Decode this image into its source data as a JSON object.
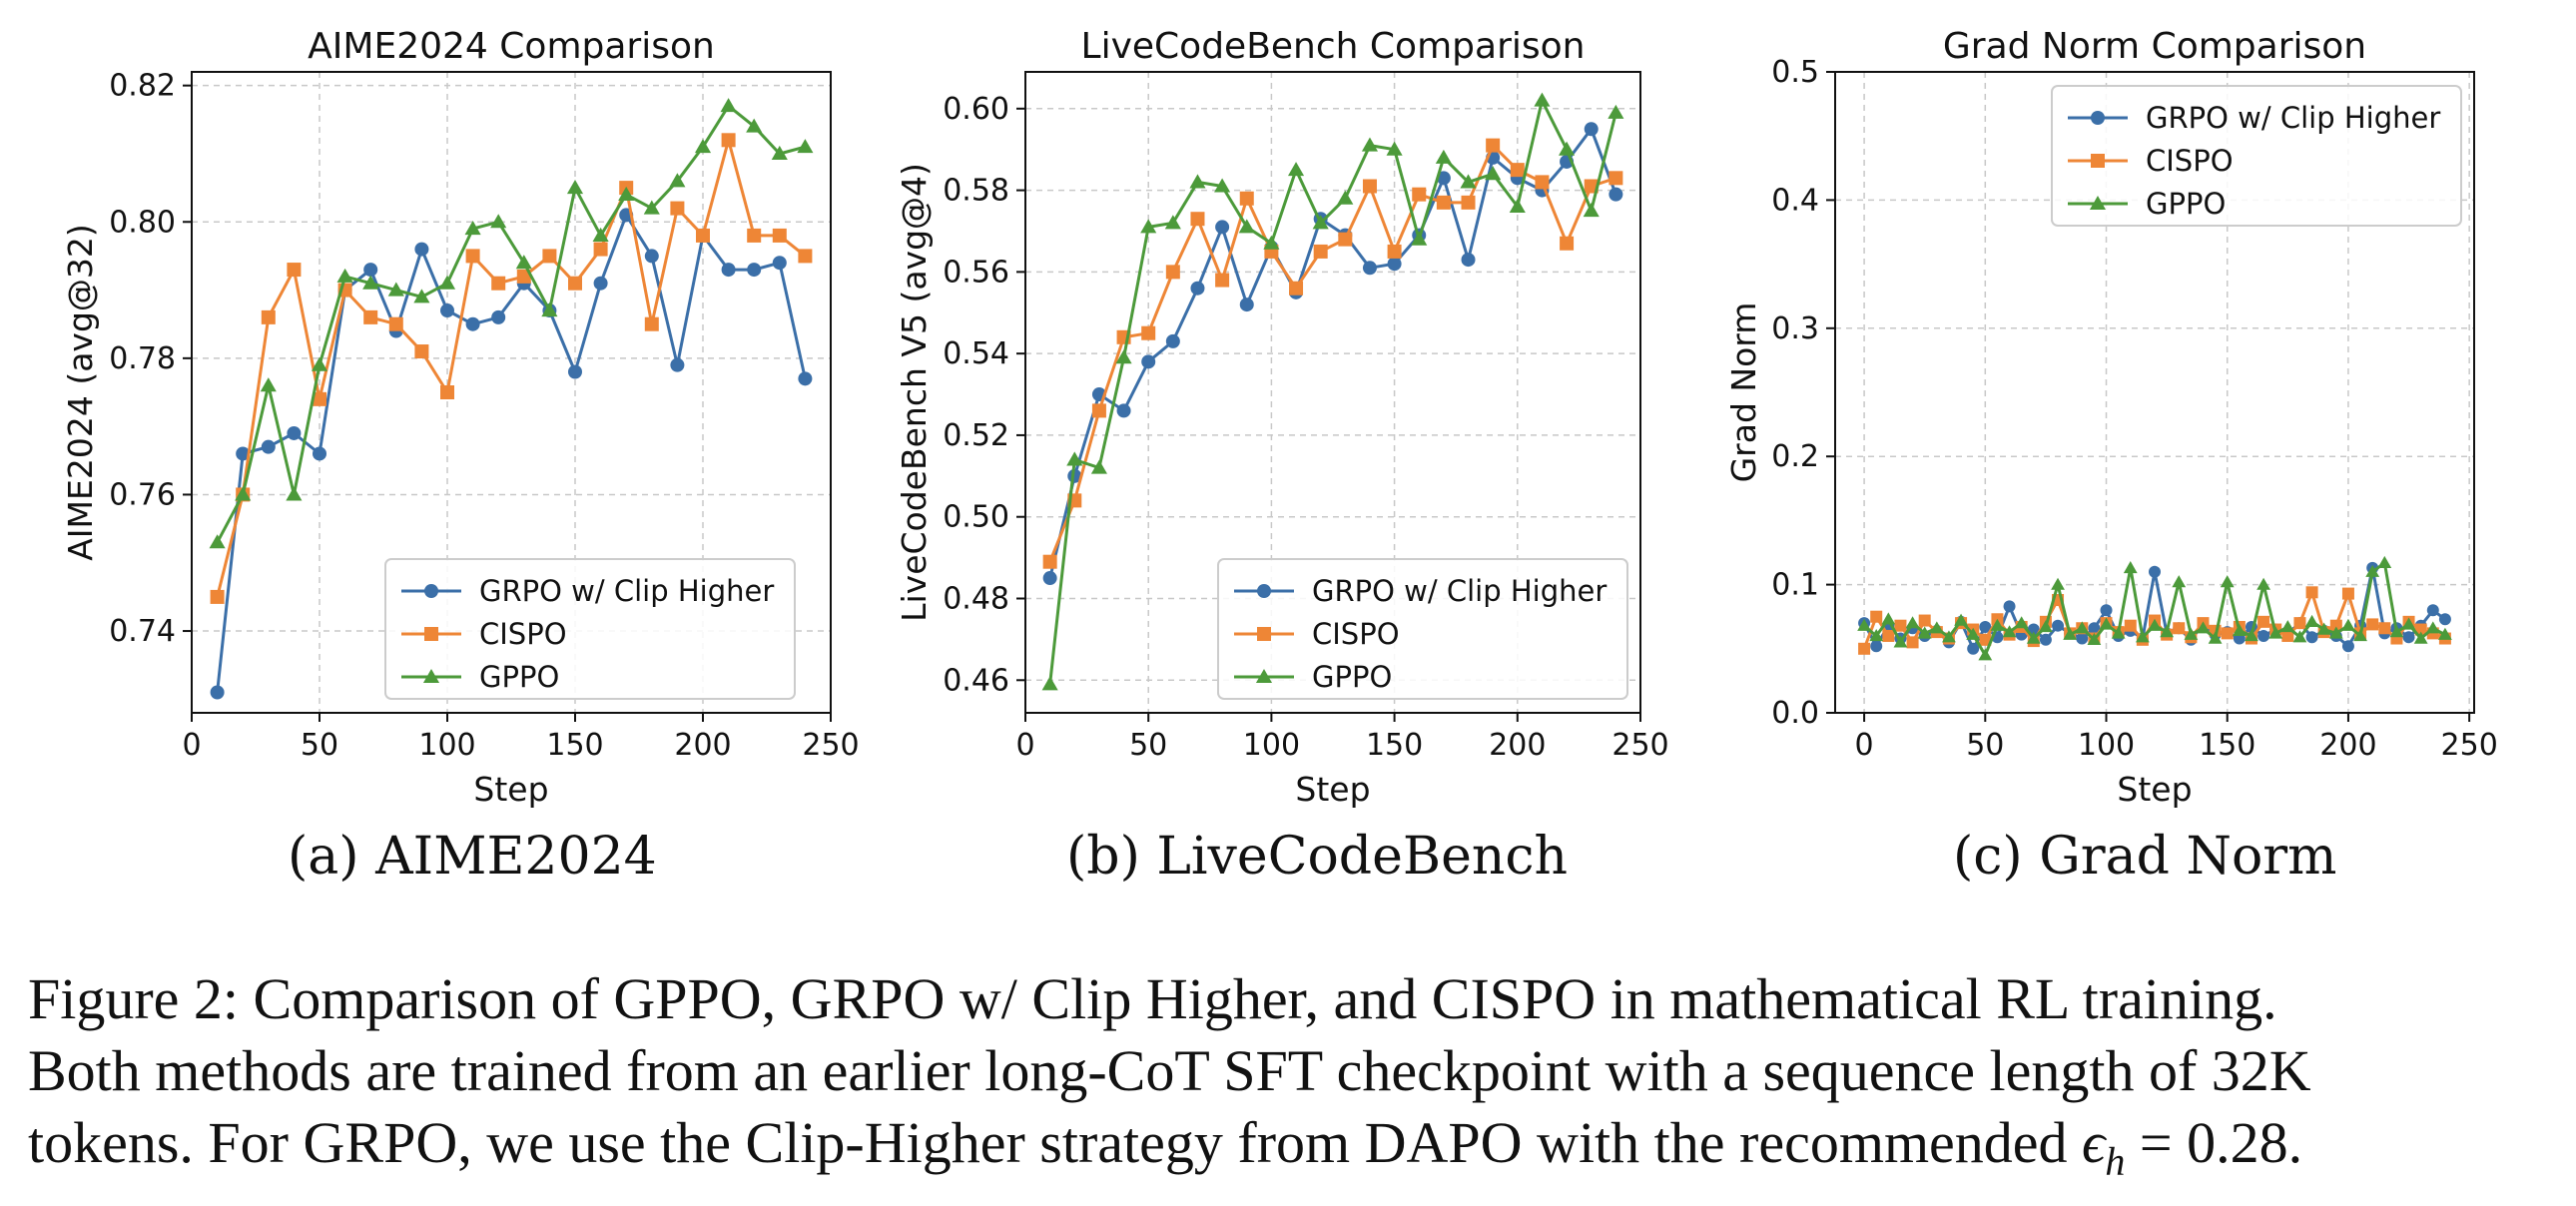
{
  "colors": {
    "grpo": "#3b6fa8",
    "cispo": "#ee8636",
    "gppo": "#4c9a3a"
  },
  "subcaptions": {
    "a": "(a) AIME2024",
    "b": "(b) LiveCodeBench",
    "c": "(c) Grad Norm"
  },
  "caption": {
    "line1": "Figure 2: Comparison of GPPO, GRPO w/ Clip Higher, and CISPO in mathematical RL training.",
    "line2": "Both methods are trained from an earlier long-CoT SFT checkpoint with a sequence length of 32K",
    "line3_prefix": "tokens. For GRPO, we use the Clip-Higher strategy from DAPO with the recommended ",
    "math_symbol": "ϵ",
    "math_sub": "h",
    "math_value": " = 0.28."
  },
  "chart_data": [
    {
      "type": "line",
      "title": "AIME2024 Comparison",
      "xlabel": "Step",
      "ylabel": "AIME2024 (avg@32)",
      "xlim": [
        0,
        250
      ],
      "ylim": [
        0.728,
        0.822
      ],
      "xticks": [
        "0",
        "50",
        "100",
        "150",
        "200",
        "250"
      ],
      "yticks": [
        "0.74",
        "0.76",
        "0.78",
        "0.80",
        "0.82"
      ],
      "grid": true,
      "legend": "lower-right",
      "x": [
        10,
        20,
        30,
        40,
        50,
        60,
        70,
        80,
        90,
        100,
        110,
        120,
        130,
        140,
        150,
        160,
        170,
        180,
        190,
        200,
        210,
        220,
        230,
        240
      ],
      "series": [
        {
          "name": "GRPO w/ Clip Higher",
          "values": [
            0.731,
            0.766,
            0.767,
            0.769,
            0.766,
            0.79,
            0.793,
            0.784,
            0.796,
            0.787,
            0.785,
            0.786,
            0.791,
            0.787,
            0.778,
            0.791,
            0.801,
            0.795,
            0.779,
            0.798,
            0.793,
            0.793,
            0.794,
            0.777
          ]
        },
        {
          "name": "CISPO",
          "values": [
            0.745,
            0.76,
            0.786,
            0.793,
            0.774,
            0.79,
            0.786,
            0.785,
            0.781,
            0.775,
            0.795,
            0.791,
            0.792,
            0.795,
            0.791,
            0.796,
            0.805,
            0.785,
            0.802,
            0.798,
            0.812,
            0.798,
            0.798,
            0.795
          ]
        },
        {
          "name": "GPPO",
          "values": [
            0.753,
            0.76,
            0.776,
            0.76,
            0.779,
            0.792,
            0.791,
            0.79,
            0.789,
            0.791,
            0.799,
            0.8,
            0.794,
            0.787,
            0.805,
            0.798,
            0.804,
            0.802,
            0.806,
            0.811,
            0.817,
            0.814,
            0.81,
            0.811
          ]
        }
      ]
    },
    {
      "type": "line",
      "title": "LiveCodeBench Comparison",
      "xlabel": "Step",
      "ylabel": "LiveCodeBench V5 (avg@4)",
      "xlim": [
        0,
        250
      ],
      "ylim": [
        0.452,
        0.609
      ],
      "xticks": [
        "0",
        "50",
        "100",
        "150",
        "200",
        "250"
      ],
      "yticks": [
        "0.46",
        "0.48",
        "0.50",
        "0.52",
        "0.54",
        "0.56",
        "0.58",
        "0.60"
      ],
      "grid": true,
      "legend": "lower-right",
      "x": [
        10,
        20,
        30,
        40,
        50,
        60,
        70,
        80,
        90,
        100,
        110,
        120,
        130,
        140,
        150,
        160,
        170,
        180,
        190,
        200,
        210,
        220,
        230,
        240
      ],
      "series": [
        {
          "name": "GRPO w/ Clip Higher",
          "values": [
            0.485,
            0.51,
            0.53,
            0.526,
            0.538,
            0.543,
            0.556,
            0.571,
            0.552,
            0.566,
            0.555,
            0.573,
            0.569,
            0.561,
            0.562,
            0.569,
            0.583,
            0.563,
            0.588,
            0.583,
            0.58,
            0.587,
            0.595,
            0.579
          ]
        },
        {
          "name": "CISPO",
          "values": [
            0.489,
            0.504,
            0.526,
            0.544,
            0.545,
            0.56,
            0.573,
            0.558,
            0.578,
            0.565,
            0.556,
            0.565,
            0.568,
            0.581,
            0.565,
            0.579,
            0.577,
            0.577,
            0.591,
            0.585,
            0.582,
            0.567,
            0.581,
            0.583
          ]
        },
        {
          "name": "GPPO",
          "values": [
            0.459,
            0.514,
            0.512,
            0.539,
            0.571,
            0.572,
            0.582,
            0.581,
            0.571,
            0.567,
            0.585,
            0.572,
            0.578,
            0.591,
            0.59,
            0.568,
            0.588,
            0.582,
            0.584,
            0.576,
            0.602,
            0.59,
            0.575,
            0.599
          ]
        }
      ]
    },
    {
      "type": "line",
      "title": "Grad Norm Comparison",
      "xlabel": "Step",
      "ylabel": "Grad Norm",
      "xlim": [
        -12,
        252
      ],
      "ylim": [
        0,
        0.5
      ],
      "xticks": [
        "0",
        "50",
        "100",
        "150",
        "200",
        "250"
      ],
      "yticks": [
        "0.0",
        "0.1",
        "0.2",
        "0.3",
        "0.4",
        "0.5"
      ],
      "grid": true,
      "legend": "upper-right",
      "x": [
        0,
        5,
        10,
        15,
        20,
        25,
        30,
        35,
        40,
        45,
        50,
        55,
        60,
        65,
        70,
        75,
        80,
        85,
        90,
        95,
        100,
        105,
        110,
        115,
        120,
        125,
        130,
        135,
        140,
        145,
        150,
        155,
        160,
        165,
        170,
        175,
        180,
        185,
        190,
        195,
        200,
        205,
        210,
        215,
        220,
        225,
        230,
        235,
        240
      ],
      "series": [
        {
          "name": "GRPO w/ Clip Higher",
          "values": [
            0.07,
            0.052,
            0.068,
            0.058,
            0.066,
            0.06,
            0.064,
            0.055,
            0.071,
            0.05,
            0.067,
            0.059,
            0.083,
            0.061,
            0.065,
            0.057,
            0.068,
            0.062,
            0.058,
            0.066,
            0.08,
            0.06,
            0.064,
            0.058,
            0.11,
            0.062,
            0.066,
            0.057,
            0.069,
            0.061,
            0.063,
            0.058,
            0.067,
            0.06,
            0.065,
            0.062,
            0.07,
            0.059,
            0.064,
            0.06,
            0.052,
            0.068,
            0.113,
            0.062,
            0.066,
            0.059,
            0.068,
            0.08,
            0.073
          ]
        },
        {
          "name": "CISPO",
          "values": [
            0.05,
            0.075,
            0.06,
            0.068,
            0.055,
            0.072,
            0.063,
            0.058,
            0.07,
            0.065,
            0.057,
            0.073,
            0.061,
            0.067,
            0.056,
            0.071,
            0.088,
            0.062,
            0.066,
            0.058,
            0.07,
            0.063,
            0.068,
            0.057,
            0.072,
            0.061,
            0.066,
            0.059,
            0.07,
            0.064,
            0.062,
            0.067,
            0.058,
            0.071,
            0.065,
            0.06,
            0.07,
            0.094,
            0.063,
            0.068,
            0.093,
            0.062,
            0.069,
            0.066,
            0.058,
            0.071,
            0.065,
            0.062,
            0.058
          ]
        },
        {
          "name": "GPPO",
          "values": [
            0.068,
            0.06,
            0.073,
            0.055,
            0.07,
            0.062,
            0.066,
            0.059,
            0.072,
            0.061,
            0.045,
            0.068,
            0.063,
            0.07,
            0.058,
            0.067,
            0.1,
            0.061,
            0.066,
            0.057,
            0.069,
            0.062,
            0.113,
            0.059,
            0.068,
            0.063,
            0.102,
            0.061,
            0.066,
            0.058,
            0.102,
            0.064,
            0.06,
            0.1,
            0.062,
            0.067,
            0.059,
            0.071,
            0.065,
            0.062,
            0.068,
            0.06,
            0.11,
            0.117,
            0.063,
            0.069,
            0.058,
            0.066,
            0.061
          ]
        }
      ]
    }
  ]
}
